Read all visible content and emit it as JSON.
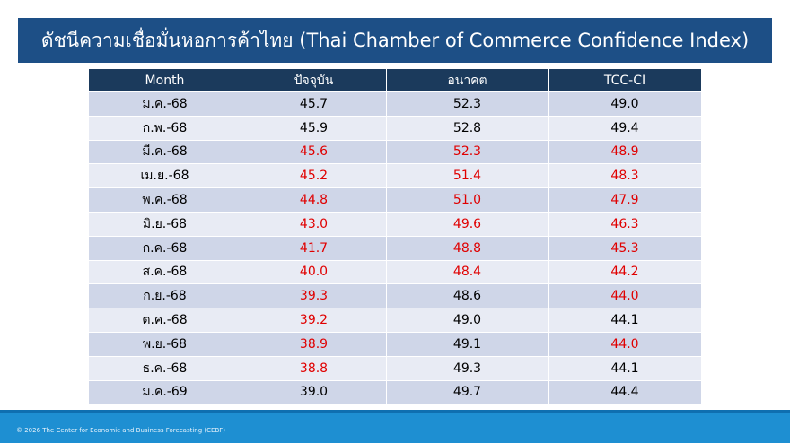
{
  "header": {
    "title": "ดัชนีความเชื่อมั่นหอการค้าไทย (Thai Chamber of Commerce Confidence Index)"
  },
  "table": {
    "columns": [
      "Month",
      "ปัจจุบัน",
      "อนาคต",
      "TCC-CI"
    ],
    "rows": [
      [
        "ม.ค.-68",
        "45.7",
        "52.3",
        "49.0"
      ],
      [
        "ก.พ.-68",
        "45.9",
        "52.8",
        "49.4"
      ],
      [
        "มี.ค.-68",
        "45.6",
        "52.3",
        "48.9"
      ],
      [
        "เม.ย.-68",
        "45.2",
        "51.4",
        "48.3"
      ],
      [
        "พ.ค.-68",
        "44.8",
        "51.0",
        "47.9"
      ],
      [
        "มิ.ย.-68",
        "43.0",
        "49.6",
        "46.3"
      ],
      [
        "ก.ค.-68",
        "41.7",
        "48.8",
        "45.3"
      ],
      [
        "ส.ค.-68",
        "40.0",
        "48.4",
        "44.2"
      ],
      [
        "ก.ย.-68",
        "39.3",
        "48.6",
        "44.0"
      ],
      [
        "ต.ค.-68",
        "39.2",
        "49.0",
        "44.1"
      ],
      [
        "พ.ย.-68",
        "38.9",
        "49.1",
        "44.0"
      ],
      [
        "ธ.ค.-68",
        "38.8",
        "49.3",
        "44.1"
      ],
      [
        "ม.ค.-69",
        "39.0",
        "49.7",
        "44.4"
      ]
    ],
    "cell_colors": [
      [
        "#000000",
        "#000000",
        "#000000",
        "#000000"
      ],
      [
        "#000000",
        "#000000",
        "#000000",
        "#000000"
      ],
      [
        "#000000",
        "#e00000",
        "#e00000",
        "#e00000"
      ],
      [
        "#000000",
        "#e00000",
        "#e00000",
        "#e00000"
      ],
      [
        "#000000",
        "#e00000",
        "#e00000",
        "#e00000"
      ],
      [
        "#000000",
        "#e00000",
        "#e00000",
        "#e00000"
      ],
      [
        "#000000",
        "#e00000",
        "#e00000",
        "#e00000"
      ],
      [
        "#000000",
        "#e00000",
        "#e00000",
        "#e00000"
      ],
      [
        "#000000",
        "#e00000",
        "#000000",
        "#e00000"
      ],
      [
        "#000000",
        "#e00000",
        "#000000",
        "#000000"
      ],
      [
        "#000000",
        "#e00000",
        "#000000",
        "#e00000"
      ],
      [
        "#000000",
        "#e00000",
        "#000000",
        "#000000"
      ],
      [
        "#000000",
        "#000000",
        "#000000",
        "#000000"
      ]
    ]
  },
  "footer": {
    "text": "© 2026 The Center for Economic and Business Forecasting (CEBF)"
  }
}
